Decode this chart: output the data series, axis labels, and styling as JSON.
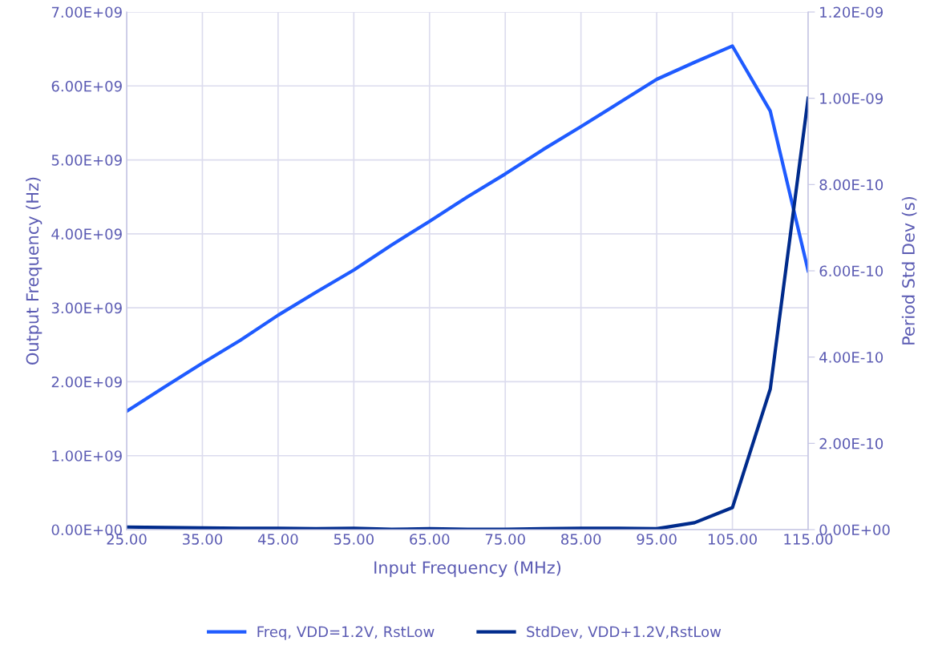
{
  "chart_data": {
    "type": "line",
    "xlabel": "Input Frequency (MHz)",
    "ylabel": "Output Frequency (Hz)",
    "y2label": "Period Std Dev (s)",
    "x": [
      25,
      30,
      35,
      40,
      45,
      50,
      55,
      60,
      65,
      70,
      75,
      80,
      85,
      90,
      95,
      100,
      105,
      110,
      115
    ],
    "series": [
      {
        "name": "Freq, VDD=1.2V, RstLow",
        "color": "#1f5bff",
        "values": [
          1600000000.0,
          1930000000.0,
          2250000000.0,
          2560000000.0,
          2900000000.0,
          3210000000.0,
          3510000000.0,
          3850000000.0,
          4170000000.0,
          4500000000.0,
          4810000000.0,
          5140000000.0,
          5450000000.0,
          5770000000.0,
          6090000000.0,
          6320000000.0,
          6540000000.0,
          5660000000.0,
          3500000000.0
        ]
      },
      {
        "name": "StdDev, VDD+1.2V,RstLow",
        "color": "#002b8c",
        "axis": "y2",
        "values": [
          6e-12,
          5e-12,
          4e-12,
          3e-12,
          3e-12,
          2e-12,
          3e-12,
          1e-12,
          2e-12,
          1e-12,
          1e-12,
          2e-12,
          3e-12,
          3e-12,
          2e-12,
          1.6e-11,
          5.1e-11,
          3.26e-10,
          1e-09
        ]
      }
    ],
    "xlim": [
      25,
      115
    ],
    "xticks": [
      {
        "value": 25,
        "label": "25.00"
      },
      {
        "value": 35,
        "label": "35.00"
      },
      {
        "value": 45,
        "label": "45.00"
      },
      {
        "value": 55,
        "label": "55.00"
      },
      {
        "value": 65,
        "label": "65.00"
      },
      {
        "value": 75,
        "label": "75.00"
      },
      {
        "value": 85,
        "label": "85.00"
      },
      {
        "value": 95,
        "label": "95.00"
      },
      {
        "value": 105,
        "label": "105.00"
      },
      {
        "value": 115,
        "label": "115.00"
      }
    ],
    "ylim": [
      0,
      7000000000.0
    ],
    "yticks": [
      {
        "value": 0,
        "label": "0.00E+00"
      },
      {
        "value": 1000000000.0,
        "label": "1.00E+09"
      },
      {
        "value": 2000000000.0,
        "label": "2.00E+09"
      },
      {
        "value": 3000000000.0,
        "label": "3.00E+09"
      },
      {
        "value": 4000000000.0,
        "label": "4.00E+09"
      },
      {
        "value": 5000000000.0,
        "label": "5.00E+09"
      },
      {
        "value": 6000000000.0,
        "label": "6.00E+09"
      },
      {
        "value": 7000000000.0,
        "label": "7.00E+09"
      }
    ],
    "y2lim": [
      0,
      1.2e-09
    ],
    "y2ticks": [
      {
        "value": 0,
        "label": "0.00E+00"
      },
      {
        "value": 2e-10,
        "label": "2.00E-10"
      },
      {
        "value": 4e-10,
        "label": "4.00E-10"
      },
      {
        "value": 6e-10,
        "label": "6.00E-10"
      },
      {
        "value": 8e-10,
        "label": "8.00E-10"
      },
      {
        "value": 1e-09,
        "label": "1.00E-09"
      },
      {
        "value": 1.2e-09,
        "label": "1.20E-09"
      }
    ],
    "grid": true,
    "legend": "bottom",
    "marker": "none",
    "line_style": "solid"
  }
}
